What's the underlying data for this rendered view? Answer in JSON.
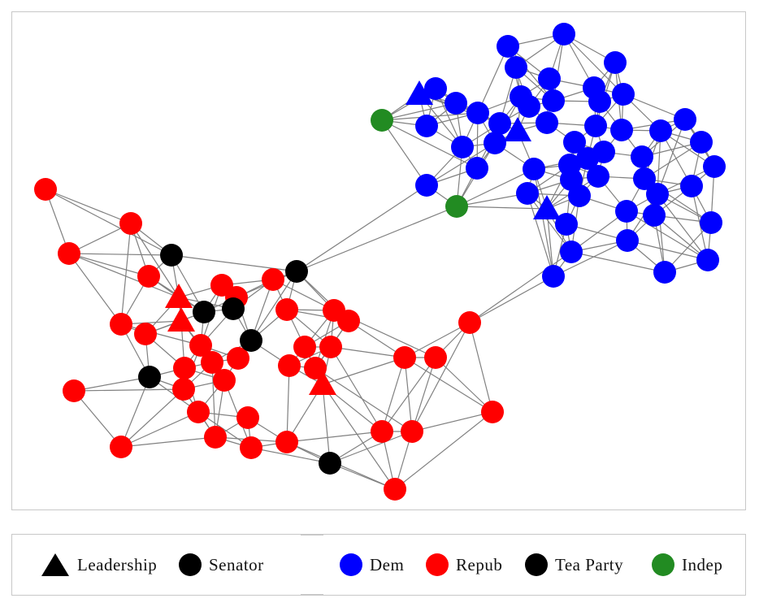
{
  "legend": {
    "shapes": [
      {
        "label": "Leadership",
        "shape": "triangle",
        "color": "#000000"
      },
      {
        "label": "Senator",
        "shape": "circle",
        "color": "#000000"
      }
    ],
    "parties": [
      {
        "label": "Dem",
        "color": "#0000ff"
      },
      {
        "label": "Repub",
        "color": "#ff0000"
      },
      {
        "label": "Tea Party",
        "color": "#000000"
      },
      {
        "label": "Indep",
        "color": "#228b22"
      }
    ]
  },
  "graph": {
    "edge_color": "#808080",
    "nodes_by_party": {
      "Dem": 62,
      "Repub": 43,
      "Tea Party": 8,
      "Indep": 2
    },
    "leadership_count": {
      "Dem": 3,
      "Repub": 3
    }
  }
}
